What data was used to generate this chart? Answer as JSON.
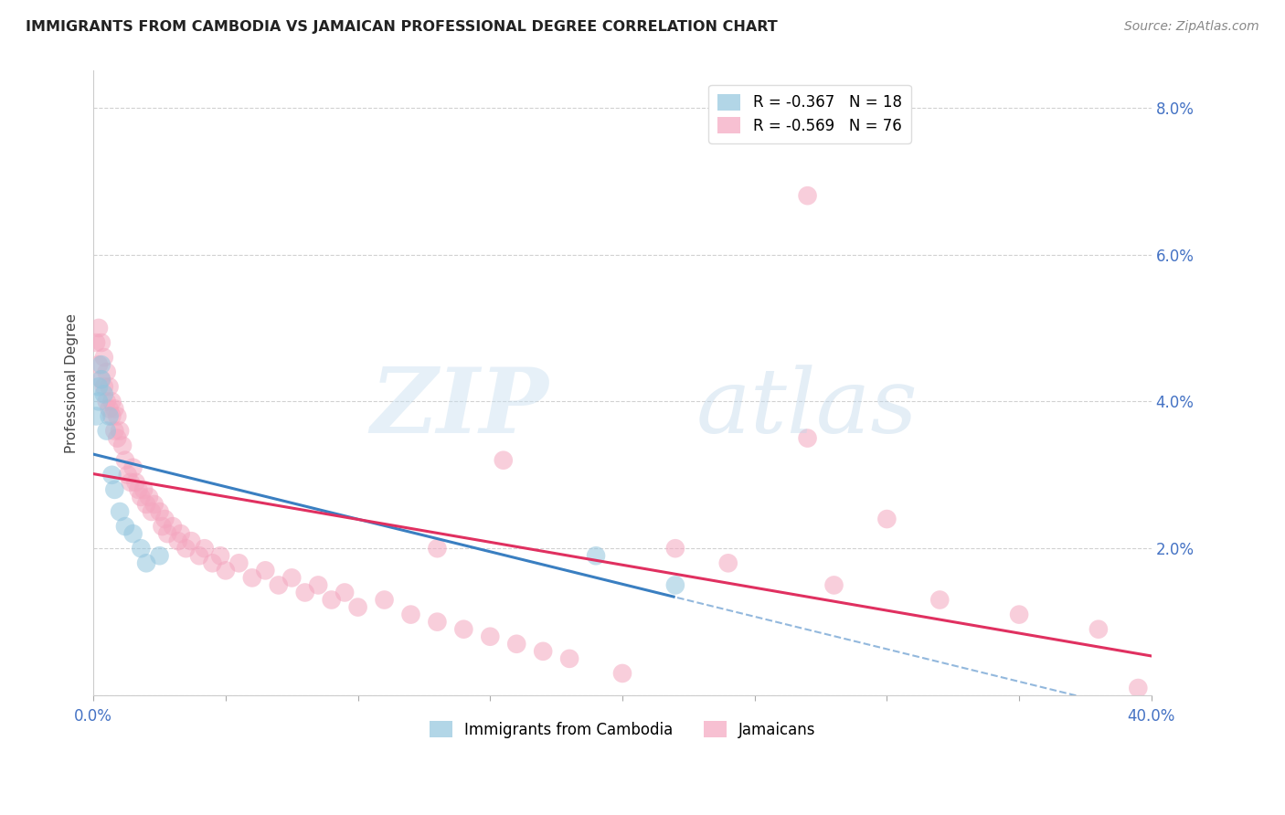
{
  "title": "IMMIGRANTS FROM CAMBODIA VS JAMAICAN PROFESSIONAL DEGREE CORRELATION CHART",
  "source": "Source: ZipAtlas.com",
  "ylabel": "Professional Degree",
  "legend_label1": "Immigrants from Cambodia",
  "legend_label2": "Jamaicans",
  "r1": -0.367,
  "n1": 18,
  "r2": -0.569,
  "n2": 76,
  "color1": "#92c5de",
  "color2": "#f4a6bf",
  "line_color1": "#3a7fc1",
  "line_color2": "#e03060",
  "xlim": [
    0.0,
    0.4
  ],
  "ylim": [
    0.0,
    0.085
  ],
  "ytick_vals": [
    0.0,
    0.02,
    0.04,
    0.06,
    0.08
  ],
  "ytick_labels": [
    "",
    "2.0%",
    "4.0%",
    "6.0%",
    "8.0%"
  ],
  "xtick_vals": [
    0.0,
    0.05,
    0.1,
    0.15,
    0.2,
    0.25,
    0.3,
    0.35,
    0.4
  ],
  "xtick_labels": [
    "0.0%",
    "",
    "",
    "",
    "",
    "",
    "",
    "",
    "40.0%"
  ],
  "cam_x": [
    0.001,
    0.002,
    0.002,
    0.003,
    0.003,
    0.004,
    0.005,
    0.006,
    0.007,
    0.008,
    0.01,
    0.012,
    0.015,
    0.018,
    0.02,
    0.025,
    0.19,
    0.22
  ],
  "cam_y": [
    0.038,
    0.042,
    0.04,
    0.043,
    0.045,
    0.041,
    0.036,
    0.038,
    0.03,
    0.028,
    0.025,
    0.023,
    0.022,
    0.02,
    0.018,
    0.019,
    0.019,
    0.015
  ],
  "jam_x": [
    0.001,
    0.002,
    0.002,
    0.003,
    0.003,
    0.004,
    0.004,
    0.005,
    0.005,
    0.006,
    0.006,
    0.007,
    0.007,
    0.008,
    0.008,
    0.009,
    0.009,
    0.01,
    0.011,
    0.012,
    0.013,
    0.014,
    0.015,
    0.016,
    0.017,
    0.018,
    0.019,
    0.02,
    0.021,
    0.022,
    0.023,
    0.025,
    0.026,
    0.027,
    0.028,
    0.03,
    0.032,
    0.033,
    0.035,
    0.037,
    0.04,
    0.042,
    0.045,
    0.048,
    0.05,
    0.055,
    0.06,
    0.065,
    0.07,
    0.075,
    0.08,
    0.085,
    0.09,
    0.095,
    0.1,
    0.11,
    0.12,
    0.13,
    0.14,
    0.15,
    0.16,
    0.17,
    0.18,
    0.2,
    0.22,
    0.24,
    0.27,
    0.28,
    0.3,
    0.32,
    0.35,
    0.38,
    0.395,
    0.27,
    0.155,
    0.13
  ],
  "jam_y": [
    0.048,
    0.05,
    0.045,
    0.048,
    0.043,
    0.046,
    0.042,
    0.044,
    0.04,
    0.042,
    0.039,
    0.04,
    0.038,
    0.039,
    0.036,
    0.038,
    0.035,
    0.036,
    0.034,
    0.032,
    0.03,
    0.029,
    0.031,
    0.029,
    0.028,
    0.027,
    0.028,
    0.026,
    0.027,
    0.025,
    0.026,
    0.025,
    0.023,
    0.024,
    0.022,
    0.023,
    0.021,
    0.022,
    0.02,
    0.021,
    0.019,
    0.02,
    0.018,
    0.019,
    0.017,
    0.018,
    0.016,
    0.017,
    0.015,
    0.016,
    0.014,
    0.015,
    0.013,
    0.014,
    0.012,
    0.013,
    0.011,
    0.01,
    0.009,
    0.008,
    0.007,
    0.006,
    0.005,
    0.003,
    0.02,
    0.018,
    0.068,
    0.015,
    0.024,
    0.013,
    0.011,
    0.009,
    0.001,
    0.035,
    0.032,
    0.02
  ],
  "cam_line_x": [
    0.0,
    0.4
  ],
  "cam_line_y": [
    0.038,
    0.0
  ],
  "jam_line_x": [
    0.0,
    0.4
  ],
  "jam_line_y": [
    0.04,
    0.0
  ]
}
